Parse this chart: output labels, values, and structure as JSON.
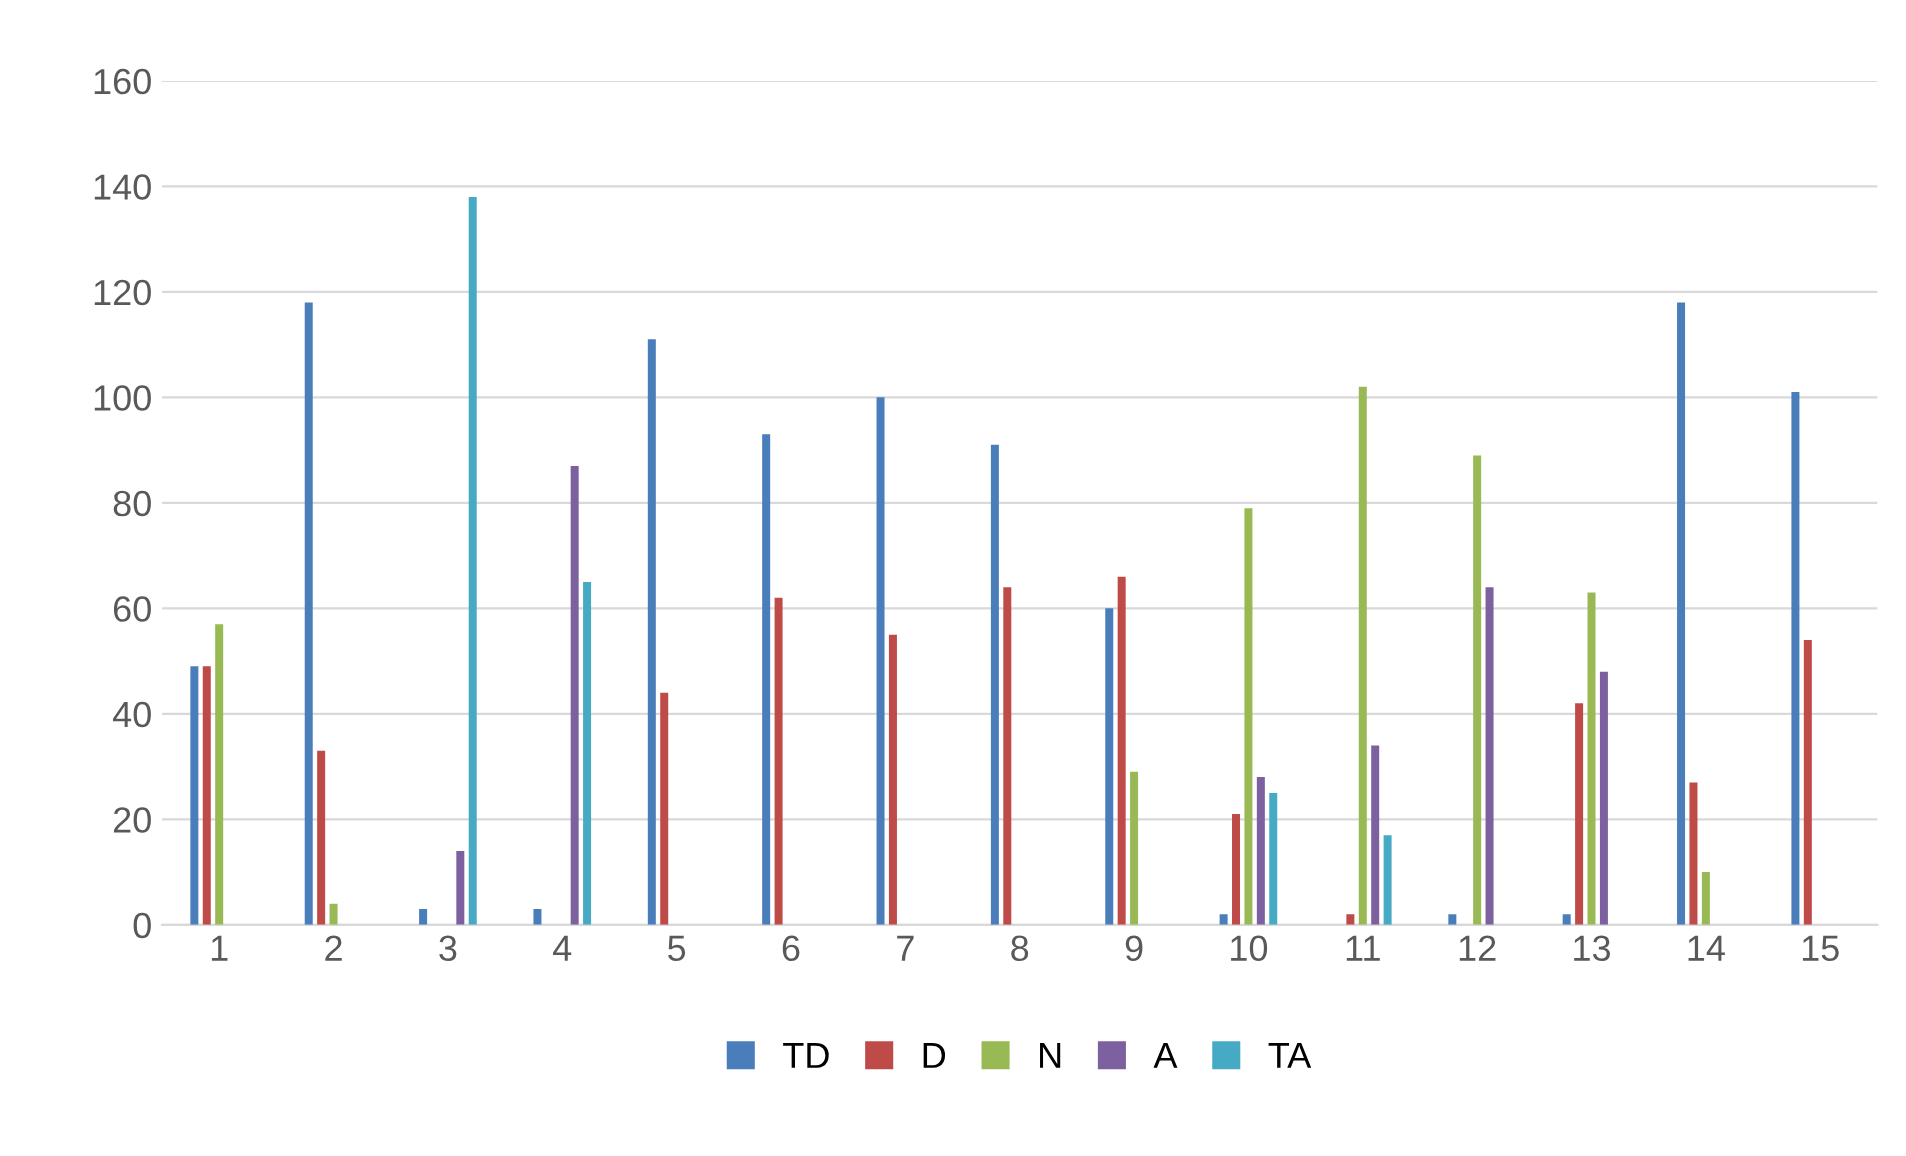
{
  "chart_data": {
    "type": "bar",
    "categories": [
      "1",
      "2",
      "3",
      "4",
      "5",
      "6",
      "7",
      "8",
      "9",
      "10",
      "11",
      "12",
      "13",
      "14",
      "15"
    ],
    "series": [
      {
        "name": "TD",
        "color": "#4a7ebb",
        "values": [
          49,
          118,
          3,
          3,
          111,
          93,
          100,
          91,
          60,
          2,
          0,
          2,
          2,
          118,
          101
        ]
      },
      {
        "name": "D",
        "color": "#be4b48",
        "values": [
          49,
          33,
          0,
          0,
          44,
          62,
          55,
          64,
          66,
          21,
          2,
          0,
          42,
          27,
          54
        ]
      },
      {
        "name": "N",
        "color": "#98b954",
        "values": [
          57,
          4,
          0,
          0,
          0,
          0,
          0,
          0,
          29,
          79,
          102,
          89,
          63,
          10,
          0
        ]
      },
      {
        "name": "A",
        "color": "#7d60a0",
        "values": [
          0,
          0,
          14,
          87,
          0,
          0,
          0,
          0,
          0,
          28,
          34,
          64,
          48,
          0,
          0
        ]
      },
      {
        "name": "TA",
        "color": "#46aac5",
        "values": [
          0,
          0,
          138,
          65,
          0,
          0,
          0,
          0,
          0,
          25,
          17,
          0,
          0,
          0,
          0
        ]
      }
    ],
    "ylim": [
      0,
      160
    ],
    "yticks": [
      0,
      20,
      40,
      60,
      80,
      100,
      120,
      140,
      160
    ],
    "grid": "y",
    "legend": "bottom"
  }
}
